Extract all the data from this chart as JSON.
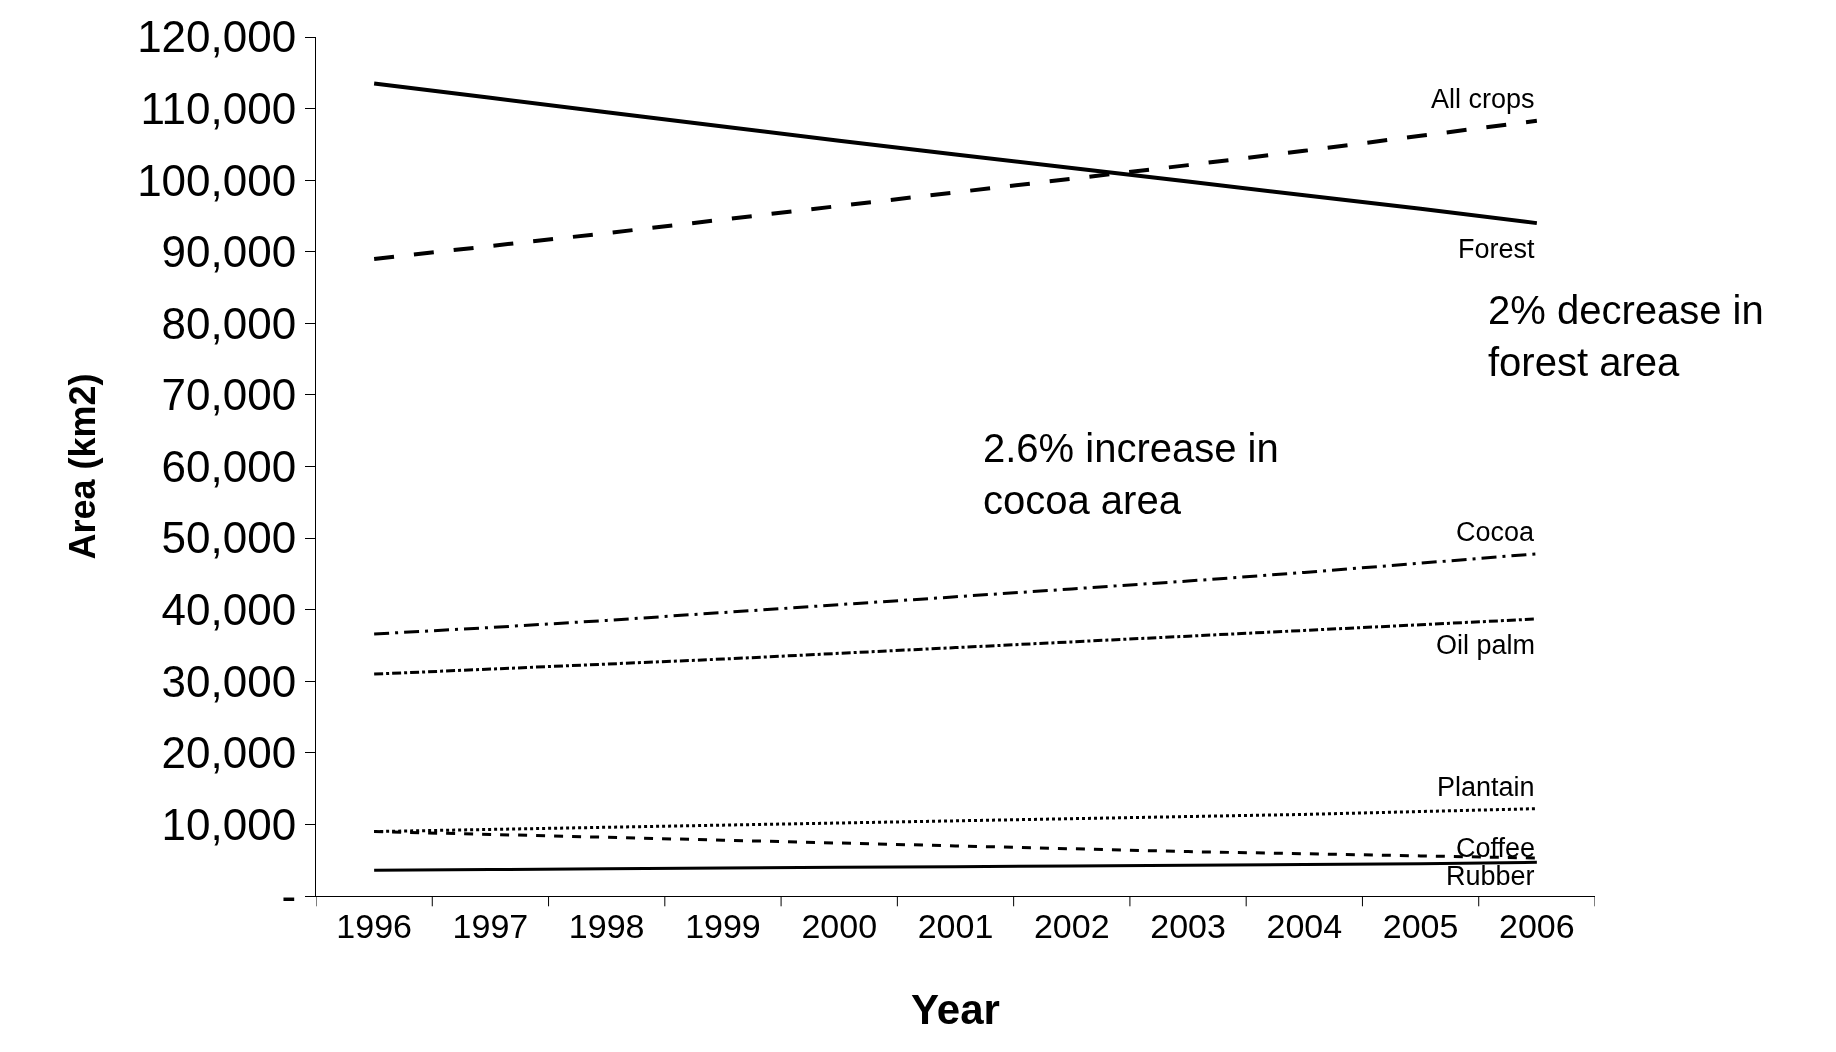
{
  "chart_data": {
    "type": "line",
    "categories": [
      "1996",
      "1997",
      "1998",
      "1999",
      "2000",
      "2001",
      "2002",
      "2003",
      "2004",
      "2005",
      "2006"
    ],
    "xlabel": "Year",
    "ylabel": "Area (km2)",
    "ylim": [
      0,
      120000
    ],
    "yticks": [
      {
        "value": 0,
        "label": "-"
      },
      {
        "value": 10000,
        "label": "10,000"
      },
      {
        "value": 20000,
        "label": "20,000"
      },
      {
        "value": 30000,
        "label": "30,000"
      },
      {
        "value": 40000,
        "label": "40,000"
      },
      {
        "value": 50000,
        "label": "50,000"
      },
      {
        "value": 60000,
        "label": "60,000"
      },
      {
        "value": 70000,
        "label": "70,000"
      },
      {
        "value": 80000,
        "label": "80,000"
      },
      {
        "value": 90000,
        "label": "90,000"
      },
      {
        "value": 100000,
        "label": "100,000"
      },
      {
        "value": 110000,
        "label": "110,000"
      },
      {
        "value": 120000,
        "label": "120,000"
      }
    ],
    "legend": false,
    "marker": "none",
    "series": [
      {
        "name": "All crops",
        "color": "#000000",
        "line_style": "longdash",
        "values": [
          89000,
          90800,
          92600,
          94500,
          96400,
          98300,
          100200,
          102100,
          104100,
          106200,
          108300
        ]
      },
      {
        "name": "Forest",
        "color": "#000000",
        "line_style": "solid",
        "values": [
          113500,
          111500,
          109500,
          107500,
          105500,
          103600,
          101700,
          99800,
          97900,
          96000,
          94000
        ]
      },
      {
        "name": "Cocoa",
        "color": "#000000",
        "line_style": "longdashdot",
        "values": [
          36600,
          37500,
          38500,
          39600,
          40700,
          41800,
          42900,
          44000,
          45200,
          46500,
          47800
        ]
      },
      {
        "name": "Oil palm",
        "color": "#000000",
        "line_style": "dashdot",
        "values": [
          31000,
          31700,
          32400,
          33100,
          33900,
          34700,
          35500,
          36300,
          37100,
          37900,
          38700
        ]
      },
      {
        "name": "Plantain",
        "color": "#000000",
        "line_style": "dotted",
        "values": [
          9000,
          9300,
          9600,
          9900,
          10200,
          10500,
          10800,
          11100,
          11400,
          11800,
          12200
        ]
      },
      {
        "name": "Coffee",
        "color": "#000000",
        "line_style": "dashed",
        "values": [
          9000,
          8600,
          8200,
          7800,
          7400,
          7000,
          6600,
          6200,
          5900,
          5600,
          5300
        ]
      },
      {
        "name": "Rubber",
        "color": "#000000",
        "line_style": "solid",
        "values": [
          3600,
          3700,
          3800,
          3900,
          4000,
          4100,
          4200,
          4300,
          4400,
          4500,
          4700
        ]
      }
    ],
    "annotations": [
      "2.6% increase in\ncocoa area",
      "2% decrease in\nforest area"
    ]
  }
}
